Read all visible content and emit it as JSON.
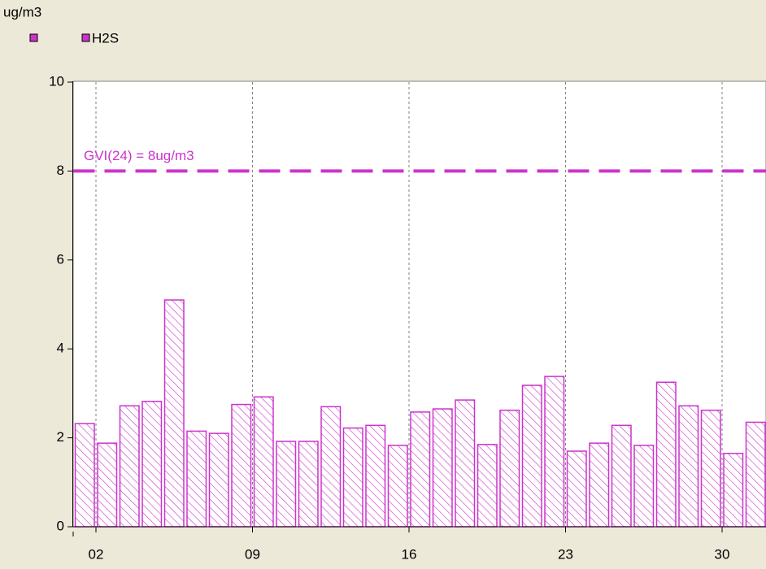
{
  "chart_data": {
    "type": "bar",
    "y_label": "ug/m3",
    "categories": [
      null,
      "02",
      null,
      null,
      null,
      null,
      null,
      null,
      "09",
      null,
      null,
      null,
      null,
      null,
      null,
      "16",
      null,
      null,
      null,
      null,
      null,
      null,
      "23",
      null,
      null,
      null,
      null,
      null,
      null,
      "30",
      null
    ],
    "series": [
      {
        "name": "H2S",
        "color": "#cc33cc",
        "values": [
          2.32,
          1.88,
          2.72,
          2.82,
          5.1,
          2.15,
          2.1,
          2.75,
          2.92,
          1.92,
          1.92,
          2.7,
          2.22,
          2.28,
          1.83,
          2.58,
          2.65,
          2.85,
          1.85,
          2.62,
          3.18,
          3.38,
          1.7,
          1.88,
          2.28,
          1.83,
          3.25,
          2.72,
          2.62,
          1.65,
          2.35
        ]
      }
    ],
    "threshold": {
      "value": 8,
      "label": "GVI(24) = 8ug/m3"
    },
    "ylim": [
      0,
      10
    ],
    "yticks": [
      0,
      2,
      4,
      6,
      8,
      10
    ],
    "grid": true
  }
}
